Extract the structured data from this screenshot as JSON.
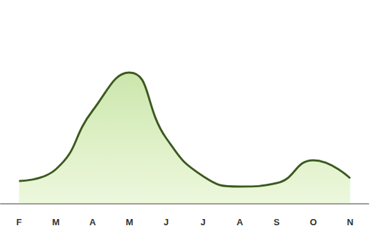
{
  "chart_data": {
    "type": "line",
    "categories": [
      "F",
      "M",
      "A",
      "M",
      "J",
      "J",
      "A",
      "S",
      "O",
      "N"
    ],
    "values": [
      33,
      50,
      135,
      190,
      95,
      40,
      25,
      30,
      63,
      37
    ],
    "color": "#3b5a1f",
    "ylim": [
      0,
      200
    ],
    "grid": false,
    "tick_labels": "x",
    "line_style": "smooth"
  }
}
